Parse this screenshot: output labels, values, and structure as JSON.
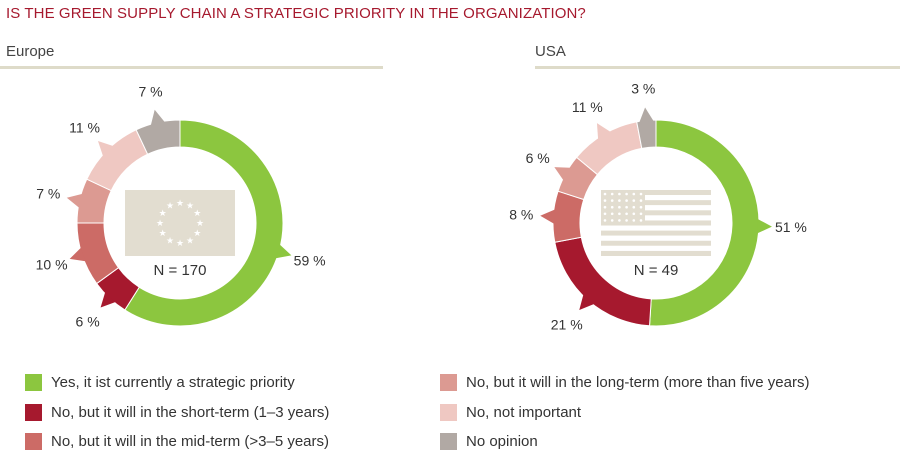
{
  "title": "IS THE GREEN SUPPLY CHAIN A STRATEGIC PRIORITY IN THE ORGANIZATION?",
  "colors": {
    "yes_now": "#8cc63f",
    "short_term": "#a6192e",
    "mid_term": "#cc6b66",
    "long_term": "#dc9a92",
    "not_important": "#efc8c2",
    "no_opinion": "#b1a9a4"
  },
  "legend": [
    {
      "key": "yes_now",
      "label": "Yes, it ist currently a strategic priority"
    },
    {
      "key": "short_term",
      "label": "No, but it will in the short-term (1–3 years)"
    },
    {
      "key": "mid_term",
      "label": "No, but it will in the mid-term (>3–5 years)"
    },
    {
      "key": "long_term",
      "label": "No, but it will in the long-term (more than five years)"
    },
    {
      "key": "not_important",
      "label": "No, not important"
    },
    {
      "key": "no_opinion",
      "label": "No opinion"
    }
  ],
  "chart_data": [
    {
      "type": "pie",
      "title": "Europe",
      "n_label": "N = 170",
      "flag": "eu-flag",
      "slices": [
        {
          "key": "yes_now",
          "value": 59,
          "label": "59 %"
        },
        {
          "key": "short_term",
          "value": 6,
          "label": "6 %"
        },
        {
          "key": "mid_term",
          "value": 10,
          "label": "10 %"
        },
        {
          "key": "long_term",
          "value": 7,
          "label": "7 %"
        },
        {
          "key": "not_important",
          "value": 11,
          "label": "11 %"
        },
        {
          "key": "no_opinion",
          "value": 7,
          "label": "7 %"
        }
      ]
    },
    {
      "type": "pie",
      "title": "USA",
      "n_label": "N = 49",
      "flag": "us-flag",
      "slices": [
        {
          "key": "yes_now",
          "value": 51,
          "label": "51 %"
        },
        {
          "key": "short_term",
          "value": 21,
          "label": "21 %"
        },
        {
          "key": "mid_term",
          "value": 8,
          "label": "8 %"
        },
        {
          "key": "long_term",
          "value": 6,
          "label": "6 %"
        },
        {
          "key": "not_important",
          "value": 11,
          "label": "11 %"
        },
        {
          "key": "no_opinion",
          "value": 3,
          "label": "3 %"
        }
      ]
    }
  ]
}
